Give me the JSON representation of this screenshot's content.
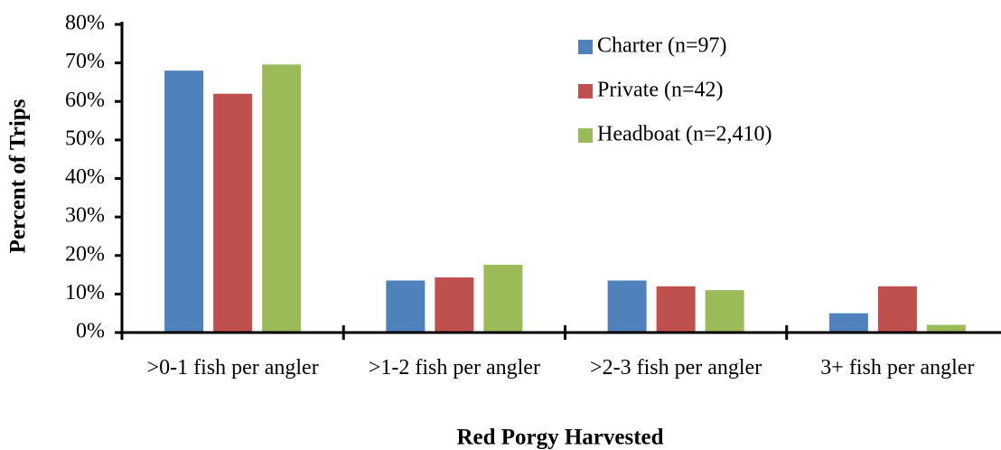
{
  "chart_data": {
    "type": "bar",
    "categories": [
      ">0-1 fish per angler",
      ">1-2 fish per angler",
      ">2-3 fish per angler",
      "3+ fish per angler"
    ],
    "series": [
      {
        "name": "Charter (n=97)",
        "color": "#4f81bd",
        "values": [
          68,
          13.5,
          13.5,
          5
        ]
      },
      {
        "name": "Private (n=42)",
        "color": "#c0504d",
        "values": [
          62,
          14.3,
          12,
          12
        ]
      },
      {
        "name": "Headboat (n=2,410)",
        "color": "#9bbb59",
        "values": [
          69.6,
          17.6,
          11,
          2
        ]
      }
    ],
    "x_label": "Red Porgy Harvested",
    "y_label": "Percent of Trips",
    "ylim": [
      0,
      80
    ],
    "yticks": [
      {
        "value": 0,
        "label": "0%"
      },
      {
        "value": 10,
        "label": "10%"
      },
      {
        "value": 20,
        "label": "20%"
      },
      {
        "value": 30,
        "label": "30%"
      },
      {
        "value": 40,
        "label": "40%"
      },
      {
        "value": 50,
        "label": "50%"
      },
      {
        "value": 60,
        "label": "60%"
      },
      {
        "value": 70,
        "label": "70%"
      },
      {
        "value": 80,
        "label": "80%"
      }
    ],
    "legend": "top-right"
  }
}
